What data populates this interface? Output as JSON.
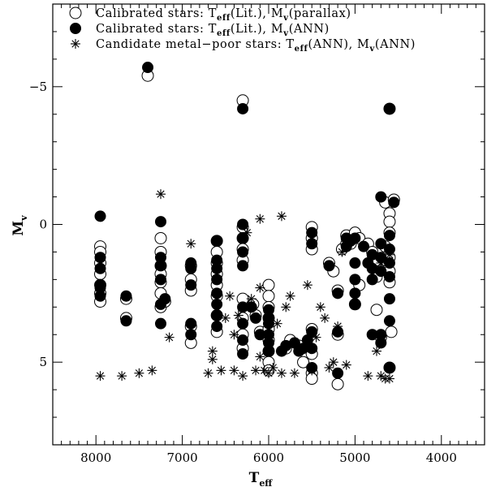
{
  "chart_data": {
    "type": "scatter",
    "xlabel": "T",
    "xlabel_sub": "eff",
    "ylabel": "M",
    "ylabel_sub": "v",
    "xlim": [
      8500,
      3500
    ],
    "ylim": [
      8,
      -8
    ],
    "xticks": [
      8000,
      7000,
      6000,
      5000,
      4000
    ],
    "yticks": [
      -5,
      0,
      5
    ],
    "ytick_labels": [
      "−5",
      "0",
      "5"
    ],
    "legend_position": "top-left",
    "legend": [
      {
        "marker": "open-circle",
        "text": "Calibrated stars: T",
        "sub1": "eff",
        "mid": "(Lit.), M",
        "sub2": "v",
        "tail": "(parallax)"
      },
      {
        "marker": "filled-circle",
        "text": "Calibrated stars: T",
        "sub1": "eff",
        "mid": "(Lit.), M",
        "sub2": "v",
        "tail": "(ANN)"
      },
      {
        "marker": "asterisk",
        "text": "Candidate metal−poor stars: T",
        "sub1": "eff",
        "mid": "(ANN), M",
        "sub2": "v",
        "tail": "(ANN)"
      }
    ],
    "series": [
      {
        "name": "Calibrated stars: Teff(Lit.), Mv(parallax)",
        "marker": "open-circle",
        "points": [
          [
            7950,
            0.8
          ],
          [
            7950,
            1.0
          ],
          [
            7950,
            1.4
          ],
          [
            7950,
            1.8
          ],
          [
            7950,
            2.2
          ],
          [
            7950,
            2.5
          ],
          [
            7950,
            2.8
          ],
          [
            7650,
            2.7
          ],
          [
            7650,
            3.4
          ],
          [
            7400,
            -5.4
          ],
          [
            7250,
            0.5
          ],
          [
            7250,
            1.0
          ],
          [
            7250,
            1.5
          ],
          [
            7250,
            1.8
          ],
          [
            7250,
            2.1
          ],
          [
            7250,
            2.5
          ],
          [
            7250,
            3.0
          ],
          [
            7200,
            2.8
          ],
          [
            6900,
            1.5
          ],
          [
            6900,
            2.0
          ],
          [
            6900,
            2.4
          ],
          [
            6900,
            3.7
          ],
          [
            6900,
            4.3
          ],
          [
            6600,
            0.6
          ],
          [
            6600,
            1.0
          ],
          [
            6600,
            1.4
          ],
          [
            6600,
            1.8
          ],
          [
            6600,
            2.2
          ],
          [
            6600,
            2.6
          ],
          [
            6600,
            3.3
          ],
          [
            6600,
            3.9
          ],
          [
            6300,
            -4.5
          ],
          [
            6300,
            0.1
          ],
          [
            6300,
            0.5
          ],
          [
            6300,
            0.9
          ],
          [
            6300,
            1.3
          ],
          [
            6300,
            2.7
          ],
          [
            6300,
            3.4
          ],
          [
            6300,
            4.0
          ],
          [
            6300,
            4.5
          ],
          [
            6180,
            2.9
          ],
          [
            6150,
            3.3
          ],
          [
            6100,
            3.9
          ],
          [
            6000,
            2.2
          ],
          [
            6000,
            2.6
          ],
          [
            6000,
            3.0
          ],
          [
            6000,
            3.4
          ],
          [
            6000,
            3.8
          ],
          [
            6000,
            4.2
          ],
          [
            6000,
            4.6
          ],
          [
            6000,
            5.0
          ],
          [
            6000,
            5.3
          ],
          [
            5800,
            4.5
          ],
          [
            5750,
            4.2
          ],
          [
            5650,
            4.4
          ],
          [
            5600,
            5.0
          ],
          [
            5500,
            0.1
          ],
          [
            5500,
            0.5
          ],
          [
            5500,
            0.9
          ],
          [
            5500,
            3.8
          ],
          [
            5500,
            4.7
          ],
          [
            5500,
            5.4
          ],
          [
            5500,
            5.6
          ],
          [
            5300,
            1.4
          ],
          [
            5250,
            1.7
          ],
          [
            5200,
            2.4
          ],
          [
            5200,
            4.0
          ],
          [
            5200,
            5.8
          ],
          [
            5150,
            0.9
          ],
          [
            5100,
            0.4
          ],
          [
            5100,
            0.7
          ],
          [
            5050,
            0.7
          ],
          [
            5000,
            0.3
          ],
          [
            5000,
            2.9
          ],
          [
            4950,
            0.5
          ],
          [
            4950,
            2.2
          ],
          [
            4850,
            0.7
          ],
          [
            4800,
            1.0
          ],
          [
            4750,
            1.3
          ],
          [
            4750,
            1.9
          ],
          [
            4750,
            3.1
          ],
          [
            4700,
            4.1
          ],
          [
            4650,
            -0.8
          ],
          [
            4650,
            0.8
          ],
          [
            4650,
            1.3
          ],
          [
            4600,
            -4.2
          ],
          [
            4600,
            -0.4
          ],
          [
            4600,
            -0.1
          ],
          [
            4600,
            0.3
          ],
          [
            4600,
            1.2
          ],
          [
            4600,
            1.7
          ],
          [
            4600,
            2.1
          ],
          [
            4600,
            5.2
          ],
          [
            4580,
            3.9
          ],
          [
            4550,
            -0.9
          ]
        ]
      },
      {
        "name": "Calibrated stars: Teff(Lit.), Mv(ANN)",
        "marker": "filled-circle",
        "points": [
          [
            7950,
            -0.3
          ],
          [
            7950,
            1.2
          ],
          [
            7950,
            1.6
          ],
          [
            7950,
            2.2
          ],
          [
            7950,
            2.3
          ],
          [
            7950,
            2.6
          ],
          [
            7650,
            2.6
          ],
          [
            7650,
            3.5
          ],
          [
            7400,
            -5.7
          ],
          [
            7250,
            -0.1
          ],
          [
            7250,
            1.2
          ],
          [
            7250,
            1.5
          ],
          [
            7250,
            2.0
          ],
          [
            7250,
            2.9
          ],
          [
            7250,
            3.6
          ],
          [
            7200,
            2.7
          ],
          [
            6900,
            1.4
          ],
          [
            6900,
            1.6
          ],
          [
            6900,
            2.2
          ],
          [
            6900,
            3.6
          ],
          [
            6900,
            4.0
          ],
          [
            6600,
            0.6
          ],
          [
            6600,
            1.3
          ],
          [
            6600,
            1.6
          ],
          [
            6600,
            2.0
          ],
          [
            6600,
            2.5
          ],
          [
            6600,
            2.9
          ],
          [
            6600,
            3.3
          ],
          [
            6600,
            3.7
          ],
          [
            6300,
            -4.2
          ],
          [
            6300,
            0.0
          ],
          [
            6300,
            0.5
          ],
          [
            6300,
            1.0
          ],
          [
            6300,
            1.5
          ],
          [
            6300,
            3.0
          ],
          [
            6300,
            3.6
          ],
          [
            6300,
            4.2
          ],
          [
            6300,
            4.7
          ],
          [
            6200,
            3.0
          ],
          [
            6150,
            3.4
          ],
          [
            6100,
            4.0
          ],
          [
            6000,
            3.1
          ],
          [
            6000,
            3.4
          ],
          [
            6000,
            3.6
          ],
          [
            6000,
            4.0
          ],
          [
            6000,
            4.3
          ],
          [
            6000,
            4.6
          ],
          [
            5850,
            4.6
          ],
          [
            5800,
            4.4
          ],
          [
            5700,
            4.3
          ],
          [
            5650,
            4.6
          ],
          [
            5600,
            4.5
          ],
          [
            5550,
            4.2
          ],
          [
            5500,
            0.3
          ],
          [
            5500,
            0.7
          ],
          [
            5500,
            3.9
          ],
          [
            5500,
            4.5
          ],
          [
            5500,
            5.2
          ],
          [
            5300,
            1.5
          ],
          [
            5200,
            2.5
          ],
          [
            5200,
            3.9
          ],
          [
            5200,
            5.4
          ],
          [
            5100,
            0.5
          ],
          [
            5100,
            0.8
          ],
          [
            5050,
            0.6
          ],
          [
            5000,
            0.5
          ],
          [
            5000,
            1.4
          ],
          [
            5000,
            2.0
          ],
          [
            5000,
            2.5
          ],
          [
            5000,
            2.9
          ],
          [
            4900,
            0.8
          ],
          [
            4850,
            1.4
          ],
          [
            4800,
            1.1
          ],
          [
            4800,
            1.6
          ],
          [
            4800,
            2.0
          ],
          [
            4800,
            4.0
          ],
          [
            4700,
            -1.0
          ],
          [
            4700,
            0.7
          ],
          [
            4700,
            1.2
          ],
          [
            4700,
            1.7
          ],
          [
            4700,
            4.0
          ],
          [
            4700,
            4.3
          ],
          [
            4600,
            -4.2
          ],
          [
            4600,
            0.4
          ],
          [
            4600,
            0.9
          ],
          [
            4600,
            1.4
          ],
          [
            4600,
            1.9
          ],
          [
            4600,
            2.7
          ],
          [
            4600,
            3.5
          ],
          [
            4600,
            5.2
          ],
          [
            4550,
            -0.8
          ]
        ]
      },
      {
        "name": "Candidate metal-poor stars: Teff(ANN), Mv(ANN)",
        "marker": "asterisk",
        "points": [
          [
            7950,
            5.5
          ],
          [
            7700,
            5.5
          ],
          [
            7500,
            5.4
          ],
          [
            7350,
            5.3
          ],
          [
            7250,
            -1.1
          ],
          [
            7150,
            4.1
          ],
          [
            6900,
            0.7
          ],
          [
            6700,
            5.4
          ],
          [
            6650,
            4.6
          ],
          [
            6650,
            4.9
          ],
          [
            6550,
            5.3
          ],
          [
            6500,
            3.4
          ],
          [
            6450,
            2.6
          ],
          [
            6400,
            4.0
          ],
          [
            6400,
            5.3
          ],
          [
            6350,
            3.3
          ],
          [
            6300,
            5.5
          ],
          [
            6250,
            0.3
          ],
          [
            6200,
            2.7
          ],
          [
            6150,
            5.3
          ],
          [
            6100,
            -0.2
          ],
          [
            6100,
            2.3
          ],
          [
            6100,
            4.8
          ],
          [
            6050,
            5.3
          ],
          [
            6000,
            5.4
          ],
          [
            5950,
            5.2
          ],
          [
            5900,
            3.6
          ],
          [
            5850,
            -0.3
          ],
          [
            5850,
            5.4
          ],
          [
            5800,
            3.0
          ],
          [
            5750,
            2.6
          ],
          [
            5700,
            5.4
          ],
          [
            5650,
            4.5
          ],
          [
            5550,
            2.2
          ],
          [
            5500,
            5.3
          ],
          [
            5450,
            4.1
          ],
          [
            5400,
            3.0
          ],
          [
            5350,
            3.4
          ],
          [
            5300,
            5.2
          ],
          [
            5250,
            5.0
          ],
          [
            5200,
            3.7
          ],
          [
            5150,
            1.0
          ],
          [
            5100,
            5.1
          ],
          [
            4850,
            5.5
          ],
          [
            4750,
            4.6
          ],
          [
            4700,
            1.4
          ],
          [
            4700,
            5.5
          ],
          [
            4650,
            5.6
          ],
          [
            4600,
            1.1
          ],
          [
            4600,
            5.6
          ]
        ]
      }
    ]
  }
}
